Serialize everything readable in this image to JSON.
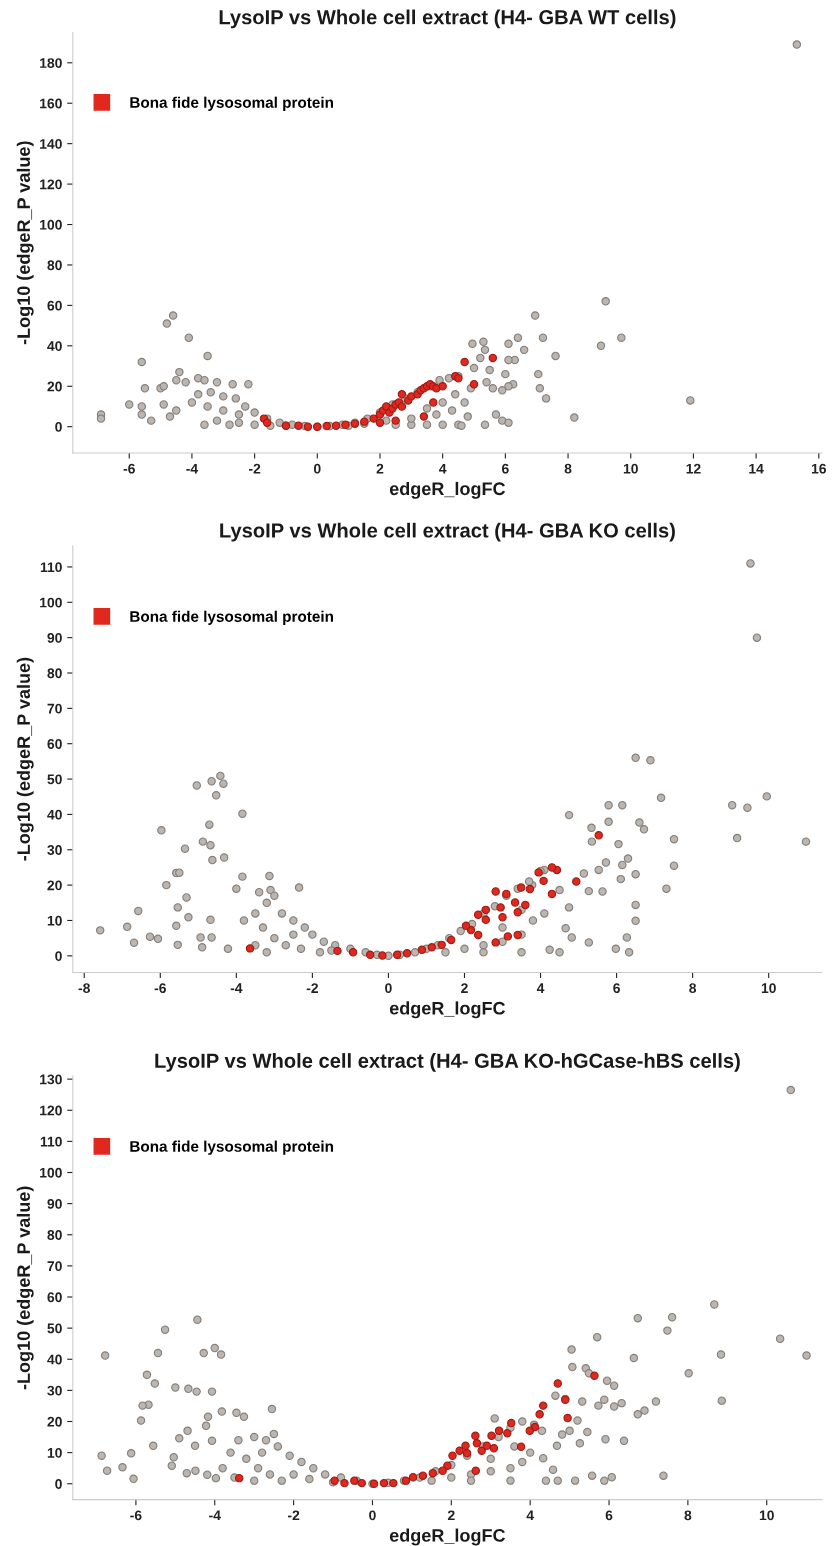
{
  "chart_data": [
    {
      "type": "scatter",
      "title": "LysoIP vs Whole cell extract (H4- GBA WT cells)",
      "xlabel": "edgeR_logFC",
      "ylabel": "-Log10 (edgeR_P value)",
      "xlim": [
        -7.8,
        16.1
      ],
      "ylim": [
        -13,
        195
      ],
      "xticks": [
        -6,
        -4,
        -2,
        0,
        2,
        4,
        6,
        8,
        10,
        12,
        14,
        16
      ],
      "yticks": [
        0,
        20,
        40,
        60,
        80,
        100,
        120,
        140,
        160,
        180
      ],
      "marker": "circle",
      "grid": false,
      "legend": "top left",
      "series": [
        {
          "color": "#bdb6b0",
          "x": [
            15.3,
            9.2,
            9.7,
            9.05,
            11.9,
            8.2,
            6.95,
            7.2,
            7.6,
            7.05,
            7.1,
            7.3,
            6.6,
            6.4,
            6.1,
            6.3,
            6.1,
            6.0,
            6.25,
            6.1,
            5.3,
            5.35,
            4.95,
            5.2,
            5.5,
            5.4,
            5.6,
            5.9,
            5.0,
            4.9,
            4.7,
            5.7,
            5.9,
            6.1,
            5.35,
            -4.6,
            -4.8,
            -4.1,
            -3.5,
            -5.6,
            -5.5,
            -5.0,
            -4.9,
            -4.4,
            -4.5,
            -4.2,
            -3.8,
            -3.6,
            -3.2,
            -2.7,
            -2.2,
            -6.0,
            -6.9,
            -6.9,
            -5.6,
            -5.6,
            -5.3,
            -4.9,
            -4.5,
            -4.7,
            -4.0,
            -3.8,
            -3.4,
            -3.0,
            -2.6,
            -2.3,
            -2.0,
            -1.6,
            -1.2,
            -0.8,
            -0.4,
            0,
            0.4,
            0.8,
            1.2,
            1.6,
            2.0,
            2.4,
            2.8,
            3.2,
            3.6,
            3.9,
            4.2,
            4.5,
            -3.5,
            -3.0,
            -2.5,
            -3.2,
            -2.8,
            -3.6,
            -2.0,
            -1.5,
            2.5,
            3.0,
            3.5,
            4.0,
            4.5,
            4.6,
            3.8,
            4.3,
            4.8,
            2.2,
            3.0,
            3.5,
            4.0,
            4.4,
            -2.5,
            -1.0,
            1.0,
            1.5
          ],
          "values": [
            189,
            62,
            44,
            40,
            13,
            4.5,
            55,
            44,
            35,
            26,
            19,
            14,
            38,
            44,
            41,
            33,
            33,
            26,
            21,
            20,
            42,
            38,
            41,
            34,
            28,
            22,
            19,
            18,
            29,
            19,
            12,
            6,
            3,
            2,
            1,
            55,
            51,
            44,
            35,
            32,
            19,
            19,
            20,
            27,
            23,
            22,
            24,
            23,
            22,
            21,
            21,
            11,
            6,
            4,
            10,
            6,
            3,
            11,
            8,
            5,
            12,
            16,
            17,
            15,
            14,
            10,
            7,
            4,
            2,
            1,
            0.3,
            0,
            0.3,
            1,
            2,
            4,
            7,
            11,
            14,
            17,
            20,
            23,
            24,
            25,
            10,
            8,
            6,
            3,
            1,
            1,
            1,
            0.5,
            1,
            1,
            1,
            1,
            1,
            0.5,
            6,
            8,
            5,
            3,
            4,
            9,
            12,
            16,
            2,
            0.5,
            0.5,
            1.5
          ]
        },
        {
          "name": "Bona fide lysosomal protein",
          "color": "#e0281f",
          "x": [
            -1.7,
            -1.6,
            -1.0,
            -0.6,
            -0.3,
            0,
            0.3,
            0.6,
            0.9,
            1.2,
            1.5,
            1.8,
            2.0,
            2.1,
            2.2,
            2.3,
            2.4,
            2.5,
            2.6,
            2.7,
            2.7,
            2.9,
            3.0,
            3.2,
            3.3,
            3.4,
            3.5,
            3.6,
            3.7,
            3.8,
            3.7,
            3.4,
            2.5,
            4.0,
            4.4,
            4.5,
            4.7,
            5.6,
            5.0,
            2.0
          ],
          "values": [
            4,
            2,
            0.5,
            0.5,
            0,
            0,
            0.3,
            0.5,
            1,
            1.5,
            2.5,
            4,
            6,
            8,
            10,
            7,
            9,
            11,
            12,
            10,
            16,
            13,
            15,
            16,
            18,
            19,
            20,
            21,
            20,
            19,
            12,
            5,
            3,
            20,
            25,
            24,
            32,
            34,
            21,
            2
          ]
        }
      ]
    },
    {
      "type": "scatter",
      "title": "LysoIP vs Whole cell extract (H4- GBA KO cells)",
      "xlabel": "edgeR_logFC",
      "ylabel": "-Log10 (edgeR_P value)",
      "xlim": [
        -8.3,
        11.4
      ],
      "ylim": [
        -4.7,
        116
      ],
      "xticks": [
        -8,
        -6,
        -4,
        -2,
        0,
        2,
        4,
        6,
        8,
        10
      ],
      "yticks": [
        0,
        10,
        20,
        30,
        40,
        50,
        60,
        70,
        80,
        90,
        100,
        110
      ],
      "marker": "circle",
      "grid": false,
      "legend": "top left",
      "series": [
        {
          "color": "#bdb6b0",
          "x": [
            9.52,
            9.69,
            6.5,
            6.89,
            7.17,
            9.04,
            9.44,
            9.95,
            9.17,
            10.98,
            7.51,
            7.51,
            7.31,
            4.75,
            5.34,
            5.35,
            5.79,
            6.15,
            5.79,
            6.6,
            6.72,
            6.05,
            6.3,
            6.15,
            5.72,
            5.53,
            5.14,
            6.5,
            6.11,
            5.27,
            5.63,
            6.5,
            6.5,
            6.27,
            6.33,
            5.98,
            5.27,
            4.66,
            4.82,
            4.5,
            4.75,
            4.1,
            3.78,
            4.24,
            -4.42,
            -4.65,
            -5.04,
            -4.34,
            -4.53,
            -3.84,
            -5.97,
            -4.71,
            -4.88,
            -4.68,
            -5.35,
            -4.63,
            -4.32,
            -5.58,
            -5.5,
            -5.84,
            -3.84,
            -5.31,
            -5.54,
            -6.58,
            -5.26,
            -6.87,
            -7.58,
            -6.27,
            -6.06,
            -6.69,
            -5.54,
            -5.58,
            -4.94,
            -4.9,
            -4.65,
            -4.68,
            -4.22,
            -4.0,
            -3.13,
            -3.1,
            -2.35,
            -3.5,
            -3.2,
            -3.0,
            -2.8,
            -2.5,
            -2.2,
            -2.0,
            -1.7,
            -1.4,
            -1.0,
            -0.6,
            -0.3,
            0,
            -3.3,
            -3.0,
            -2.7,
            -2.3,
            -1.8,
            -3.5,
            -3.2,
            -2.5,
            -1.5,
            -3.8,
            -3.4,
            0.3,
            0.7,
            1.0,
            1.3,
            1.6,
            1.9,
            2.2,
            2.5,
            2.8,
            3.1,
            3.4,
            3.7,
            4.0,
            1.5,
            2.0,
            2.5,
            3.0,
            3.5,
            3.8,
            4.1,
            2.5,
            3.5,
            4.5,
            3.0,
            3.5
          ],
          "values": [
            111,
            90,
            56,
            55.3,
            44.7,
            42.6,
            41.9,
            45.1,
            33.3,
            32.3,
            33,
            25.5,
            19,
            39.8,
            36.2,
            32.3,
            42.6,
            42.6,
            37.9,
            37.7,
            35.8,
            31.6,
            27.5,
            25.7,
            26.4,
            24.3,
            23.3,
            23.1,
            21.7,
            18.3,
            18.2,
            14.4,
            9.9,
            5.2,
            1,
            2,
            3.8,
            7.8,
            5.2,
            18.6,
            13.7,
            24.3,
            20,
            1.7,
            50.9,
            49.4,
            48.2,
            48.7,
            45.4,
            40.2,
            35.5,
            37.1,
            32.3,
            31.3,
            30.3,
            27.1,
            27.8,
            23.4,
            23.5,
            20,
            22.4,
            16.5,
            13.7,
            12.7,
            10.9,
            8.2,
            7.2,
            5.4,
            4.8,
            3.7,
            3.1,
            8.5,
            5.2,
            2.4,
            5.2,
            10.2,
            2,
            19,
            22.6,
            18.6,
            19.3,
            12,
            15,
            17,
            12,
            10,
            8,
            6,
            4,
            3,
            2,
            1,
            0.3,
            0,
            8,
            5,
            3,
            2,
            1,
            3,
            1,
            6,
            1.5,
            10,
            18,
            0.3,
            1,
            2,
            3,
            5,
            7,
            9,
            12,
            14,
            17,
            19,
            21,
            24,
            1,
            2,
            3,
            4,
            6,
            10,
            12,
            1,
            1,
            1,
            8,
            13
          ]
        },
        {
          "name": "Bona fide lysosomal protein",
          "color": "#e0281f",
          "x": [
            5.53,
            4.94,
            4.43,
            4.3,
            3.95,
            4.3,
            4.08,
            2.82,
            3.1,
            3.49,
            3.72,
            3.33,
            3.0,
            2.36,
            2.56,
            2.17,
            2.04,
            2.36,
            2.82,
            3.14,
            3.4,
            1.65,
            1.4,
            1.14,
            0.88,
            0.49,
            0.23,
            -0.16,
            -0.48,
            -0.93,
            -1.34,
            -3.64,
            2.95,
            3.4,
            2.56,
            3.6
          ],
          "values": [
            34.1,
            21,
            24.3,
            25,
            23.6,
            17.5,
            21.2,
            18.2,
            17.5,
            19.3,
            18.9,
            15.1,
            10.9,
            11.6,
            10.2,
            7.3,
            8.5,
            5.9,
            3.8,
            5.5,
            5.9,
            4.5,
            3.1,
            2.4,
            1.7,
            0.7,
            0.3,
            0.1,
            0.3,
            1,
            1.4,
            2.1,
            13.7,
            12.3,
            13,
            14.4
          ]
        }
      ]
    },
    {
      "type": "scatter",
      "title": "LysoIP vs Whole cell extract (H4- GBA KO-hGCase-hBS cells)",
      "xlabel": "edgeR_logFC",
      "ylabel": "-Log10 (edgeR_P value)",
      "xlim": [
        -7.6,
        11.4
      ],
      "ylim": [
        -5.1,
        131
      ],
      "xticks": [
        -6,
        -4,
        -2,
        0,
        2,
        4,
        6,
        8,
        10
      ],
      "yticks": [
        0,
        10,
        20,
        30,
        40,
        50,
        60,
        70,
        80,
        90,
        100,
        110,
        120,
        130
      ],
      "marker": "circle",
      "grid": false,
      "legend": "top left",
      "series": [
        {
          "color": "#bdb6b0",
          "x": [
            10.61,
            8.67,
            6.73,
            7.6,
            7.48,
            5.7,
            10.34,
            5.05,
            6.63,
            8.84,
            11.01,
            8.02,
            5.07,
            5.41,
            5.49,
            5.95,
            6.13,
            4.64,
            4.89,
            5.88,
            5.32,
            5.73,
            6.13,
            6.32,
            7.19,
            8.86,
            6.9,
            6.73,
            5.2,
            5.0,
            4.81,
            5.45,
            5.91,
            6.38,
            5.26,
            4.68,
            4.33,
            4.58,
            5.14,
            5.57,
            5.88,
            6.07,
            7.38,
            4.7,
            -4.44,
            -5.26,
            -6.78,
            -5.44,
            -4.28,
            -4.0,
            -3.84,
            -5.72,
            -5.52,
            -5.0,
            -4.67,
            -4.46,
            -4.07,
            -5.68,
            -5.83,
            -5.87,
            -2.55,
            -3.82,
            -4.17,
            -4.22,
            -4.69,
            -4.9,
            -5.56,
            -6.12,
            -6.87,
            -6.73,
            -6.34,
            -6.06,
            -5.09,
            -5.04,
            -4.71,
            -4.49,
            -4.19,
            -3.97,
            -4.5,
            -4.07,
            -3.45,
            -3.26,
            -3.4,
            -3.0,
            -2.7,
            -2.4,
            -2.1,
            -1.8,
            -1.5,
            -1.2,
            -0.8,
            -0.4,
            0,
            -3.6,
            -3.2,
            -2.9,
            -2.6,
            -2.3,
            -3.5,
            -3.0,
            -2.0,
            -1.6,
            -3.8,
            -2.8,
            -2.5,
            -1.0,
            0.4,
            0.8,
            1.2,
            1.6,
            2.0,
            2.4,
            2.8,
            3.2,
            3.5,
            3.8,
            4.1,
            4.3,
            1.5,
            2.0,
            2.5,
            3.0,
            3.5,
            3.8,
            4.0,
            2.5,
            3.5,
            4.4,
            3.0,
            3.6,
            3.1
          ],
          "values": [
            126.5,
            57.6,
            53.2,
            53.5,
            49.2,
            47.1,
            46.6,
            43.1,
            40.4,
            41.5,
            41.2,
            35.5,
            37.5,
            37.1,
            35.5,
            33.1,
            31.5,
            28.3,
            27.2,
            27,
            26.4,
            25.1,
            24.8,
            25.9,
            26.4,
            26.7,
            23.5,
            22.3,
            20.3,
            17,
            15.8,
            16.6,
            14.3,
            13.8,
            13,
            12.2,
            8.2,
            4.5,
            1,
            2.6,
            1,
            2.1,
            2.6,
            1,
            52.7,
            49.5,
            41.2,
            42,
            42,
            43.6,
            41.5,
            35,
            32.2,
            30.9,
            30.5,
            29.6,
            29.6,
            25.4,
            25.1,
            20.3,
            24,
            23.2,
            21.5,
            18.6,
            17,
            14.6,
            12.2,
            9.8,
            9,
            4.2,
            5.3,
            1.6,
            5.8,
            8.5,
            3.4,
            4.2,
            2.9,
            1.8,
            12.2,
            13.8,
            22.8,
            21.5,
            14,
            15,
            14,
            12,
            9,
            7,
            5,
            3,
            2,
            1,
            0,
            10,
            8,
            5,
            3,
            1,
            2,
            1,
            3,
            1.5,
            5,
            10,
            16,
            0.5,
            0.3,
            1,
            2,
            4,
            6,
            9,
            12,
            15,
            18,
            20,
            19,
            17,
            1,
            2,
            3,
            4,
            5,
            7,
            10,
            1,
            1,
            1,
            8,
            12,
            21
          ]
        },
        {
          "name": "Bona fide lysosomal protein",
          "color": "#e0281f",
          "x": [
            5.63,
            4.7,
            4.89,
            4.33,
            4.24,
            4.95,
            4.12,
            3.99,
            3.77,
            3.52,
            3.42,
            3.21,
            3.02,
            3.08,
            2.61,
            2.62,
            2.4,
            2.21,
            2.03,
            1.9,
            1.78,
            1.53,
            1.28,
            1.03,
            0.85,
            0.53,
            0.29,
            0.04,
            -0.27,
            -0.46,
            -0.71,
            -0.96,
            -3.38,
            2.65,
            2.77,
            2.9,
            2.36
          ],
          "values": [
            34.7,
            32.2,
            27,
            25.1,
            22.3,
            21.1,
            18.2,
            17,
            11.9,
            19.5,
            16.2,
            17,
            15.4,
            11.4,
            15.4,
            4.2,
            9.8,
            10.6,
            9,
            5.8,
            4.2,
            3.4,
            2.6,
            2.1,
            1,
            0.2,
            0.2,
            0,
            0.2,
            1,
            0.2,
            1,
            1.8,
            13,
            10.6,
            12.2,
            12.2
          ]
        }
      ]
    }
  ]
}
